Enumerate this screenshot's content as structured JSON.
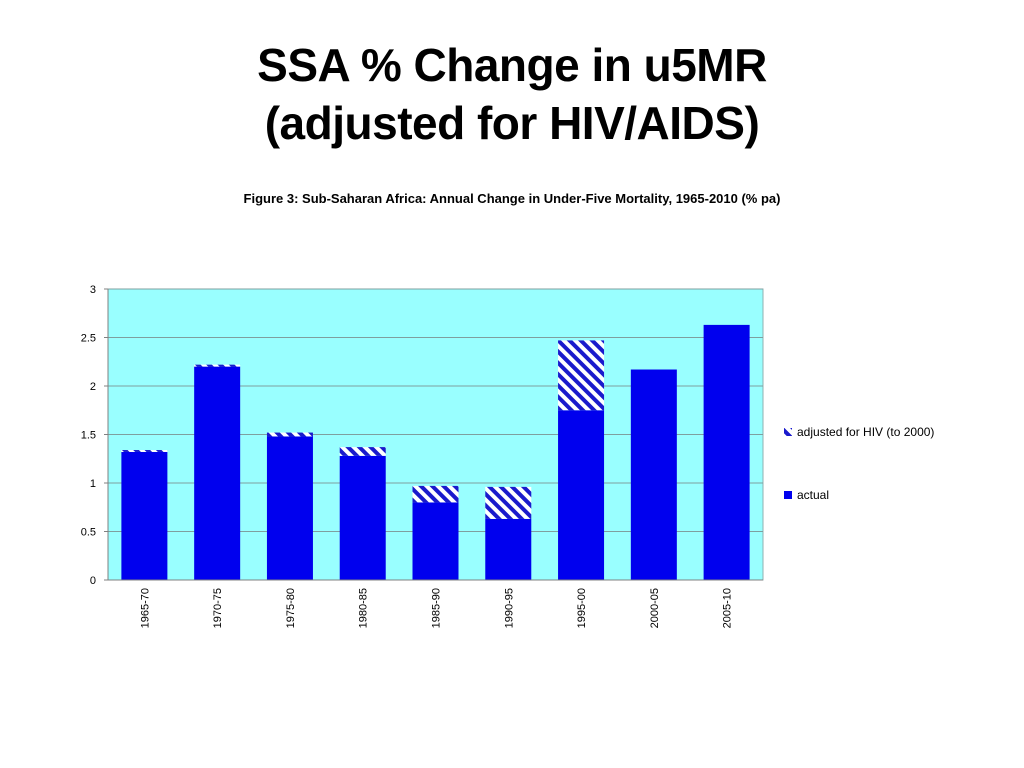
{
  "slide": {
    "title_line1": "SSA % Change in u5MR",
    "title_line2": "(adjusted for HIV/AIDS)"
  },
  "colors": {
    "actual": "#0000ee",
    "hatch_stripe": "#1a1acc",
    "plot_background": "#99ffff",
    "gridline": "#7f9f9f"
  },
  "chart_data": {
    "type": "bar",
    "stacked": true,
    "title": "Figure 3: Sub-Saharan Africa: Annual Change in Under-Five Mortality, 1965-2010 (% pa)",
    "xlabel": "",
    "ylabel": "",
    "ylim": [
      0,
      3
    ],
    "yticks": [
      0,
      0.5,
      1,
      1.5,
      2,
      2.5,
      3
    ],
    "ytick_labels": [
      "0",
      "0.5",
      "1",
      "1.5",
      "2",
      "2.5",
      "3"
    ],
    "grid": true,
    "legend_position": "right",
    "categories": [
      "1965-70",
      "1970-75",
      "1975-80",
      "1980-85",
      "1985-90",
      "1990-95",
      "1995-00",
      "2000-05",
      "2005-10"
    ],
    "series": [
      {
        "name": "actual",
        "fill": "solid",
        "values": [
          1.32,
          2.2,
          1.48,
          1.28,
          0.8,
          0.63,
          1.75,
          2.17,
          2.63
        ]
      },
      {
        "name": "adjusted for HIV (to 2000)",
        "fill": "hatched",
        "values": [
          0.02,
          0.02,
          0.04,
          0.09,
          0.17,
          0.33,
          0.72,
          0,
          0
        ]
      }
    ],
    "legend_order": [
      "adjusted for HIV (to 2000)",
      "actual"
    ]
  }
}
